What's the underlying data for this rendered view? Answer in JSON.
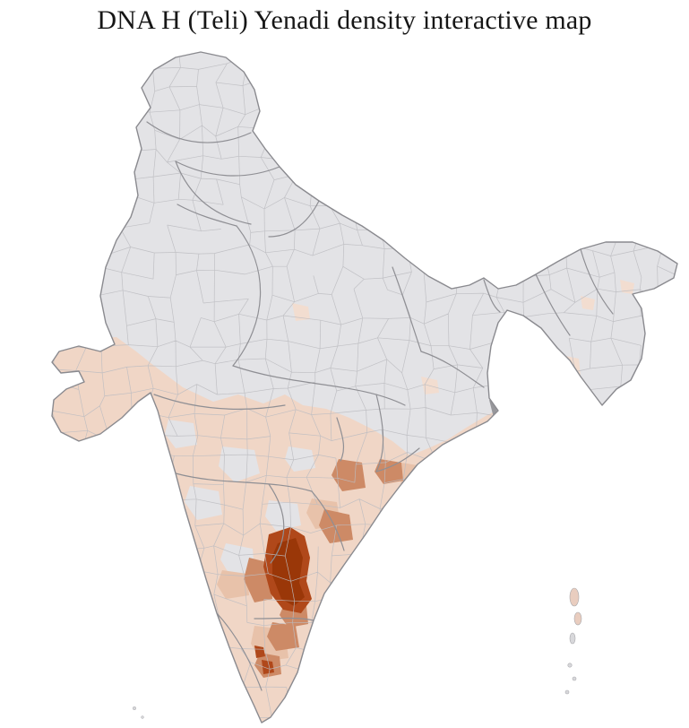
{
  "page": {
    "title": "DNA H (Teli) Yenadi density interactive map"
  },
  "map": {
    "label": "India district-level density choropleth",
    "colors": {
      "background": "#ffffff",
      "no_data": "#e3e3e6",
      "district_border": "#bdbdc1",
      "state_border": "#8f8f94",
      "coastline": "#8a8a8f",
      "density_very_low": "#f2ddd0",
      "density_low": "#f0d6c6",
      "density_medium_low": "#e8c2aa",
      "density_medium": "#cd8a66",
      "density_high": "#b0481a",
      "density_highest": "#9a3708",
      "special_dark_gray": "#97979b",
      "island_tinted": "#e9cdbf",
      "island_gray": "#d8d8db"
    }
  }
}
